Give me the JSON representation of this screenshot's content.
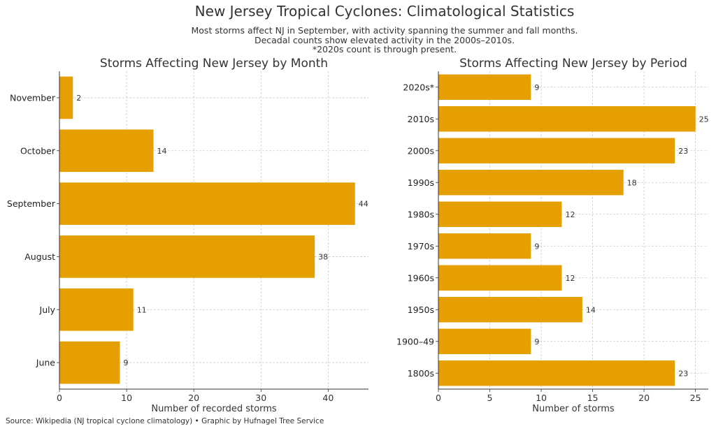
{
  "figure": {
    "title": "New Jersey Tropical Cyclones: Climatological Statistics",
    "subtitle_lines": [
      "Most storms affect NJ in September, with activity spanning the summer and fall months.",
      "Decadal counts show elevated activity in the 2000s–2010s.",
      "*2020s count is through present."
    ],
    "source": "Source: Wikipedia (NJ tropical cyclone climatology) • Graphic by Hufnagel Tree Service",
    "bar_color": "#E5A000",
    "grid_color": "#cccccc"
  },
  "chart_data": [
    {
      "type": "bar",
      "orientation": "horizontal",
      "title": "Storms Affecting New Jersey by Month",
      "xlabel": "Number of recorded storms",
      "ylabel": "",
      "categories": [
        "June",
        "July",
        "August",
        "September",
        "October",
        "November"
      ],
      "values": [
        9,
        11,
        38,
        44,
        14,
        2
      ],
      "xlim": [
        0,
        46
      ],
      "xticks": [
        0,
        10,
        20,
        30,
        40
      ],
      "grid": true,
      "data_labels": true
    },
    {
      "type": "bar",
      "orientation": "horizontal",
      "title": "Storms Affecting New Jersey by Period",
      "xlabel": "Number of storms",
      "ylabel": "",
      "categories": [
        "1800s",
        "1900–49",
        "1950s",
        "1960s",
        "1970s",
        "1980s",
        "1990s",
        "2000s",
        "2010s",
        "2020s*"
      ],
      "values": [
        23,
        9,
        14,
        12,
        9,
        12,
        18,
        23,
        25,
        9
      ],
      "xlim": [
        0,
        26.25
      ],
      "xticks": [
        0,
        5,
        10,
        15,
        20,
        25
      ],
      "grid": true,
      "data_labels": true
    }
  ]
}
